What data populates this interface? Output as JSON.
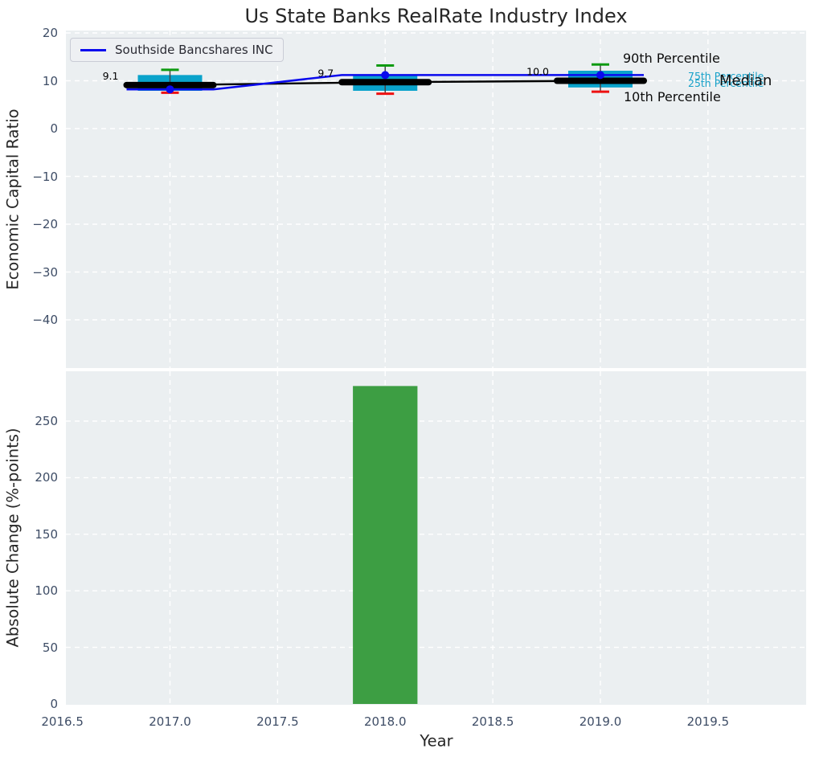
{
  "title": "Us State Banks RealRate Industry Index",
  "legend": {
    "series_label": "Southside Bancshares INC"
  },
  "annotations": {
    "p90": "90th Percentile",
    "p75": "75th Percentile",
    "p25": "25th Percentile",
    "median": "Median",
    "p10": "10th Percentile"
  },
  "chart_data": [
    {
      "type": "box",
      "title": "Us State Banks RealRate Industry Index",
      "ylabel": "Economic Capital Ratio",
      "ylim": [
        -50,
        20
      ],
      "yticks": [
        20,
        10,
        0,
        -10,
        -20,
        -30,
        -40
      ],
      "ytick_labels": [
        "20",
        "10",
        "0",
        "−10",
        "−20",
        "−30",
        "−40"
      ],
      "years": [
        2017,
        2018,
        2019
      ],
      "boxes": [
        {
          "year": 2017,
          "p10": 7.5,
          "p25": 7.9,
          "median": 9.1,
          "p75": 11.2,
          "p90": 12.3,
          "median_label": "9.1"
        },
        {
          "year": 2018,
          "p10": 7.3,
          "p25": 7.9,
          "median": 9.7,
          "p75": 11.3,
          "p90": 13.2,
          "median_label": "9.7"
        },
        {
          "year": 2019,
          "p10": 7.7,
          "p25": 8.6,
          "median": 10.0,
          "p75": 12.1,
          "p90": 13.4,
          "median_label": "10.0"
        }
      ],
      "series": [
        {
          "name": "Southside Bancshares INC",
          "values": [
            8.2,
            11.2,
            11.2
          ]
        }
      ],
      "legend_position": "upper left",
      "grid": "white dashed",
      "colors": {
        "box_fill": "#0aa3cb",
        "median_line": "#000000",
        "company_line": "#0a0aee",
        "p90_cap": "#0d9a11",
        "p10_cap": "#ee1111",
        "whisker": "#444444",
        "plot_bg": "#ebeff1"
      }
    },
    {
      "type": "bar",
      "xlabel": "Year",
      "ylabel": "Absolute Change (%-points)",
      "ylim": [
        0,
        295
      ],
      "yticks": [
        0,
        50,
        100,
        150,
        200,
        250
      ],
      "ytick_labels": [
        "0",
        "50",
        "100",
        "150",
        "200",
        "250"
      ],
      "xticks": [
        2016.5,
        2017,
        2017.5,
        2018,
        2018.5,
        2019,
        2019.5
      ],
      "xtick_labels": [
        "2016.5",
        "2017.0",
        "2017.5",
        "2018.0",
        "2018.5",
        "2019.0",
        "2019.5"
      ],
      "bars": [
        {
          "x": 2018,
          "value": 281
        }
      ],
      "bar_width_years": 0.3,
      "bar_color": "#3d9e43",
      "grid": "white dashed"
    }
  ]
}
